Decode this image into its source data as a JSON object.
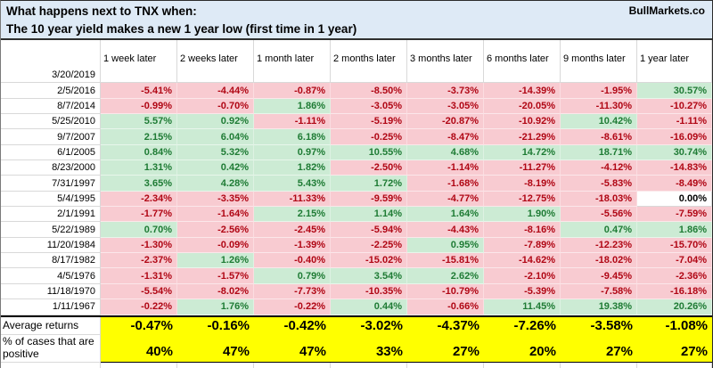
{
  "header": {
    "title_line1": "What happens next to TNX when:",
    "title_line2": "The 10 year yield makes a new 1 year low (first time in 1 year)",
    "brand": "BullMarkets.co"
  },
  "table": {
    "column_headers": [
      "1 week later",
      "2 weeks later",
      "1 month later",
      "2 months later",
      "3 months later",
      "6 months later",
      "9 months later",
      "1 year later"
    ],
    "rows": [
      {
        "date": "3/20/2019",
        "values": [
          "",
          "",
          "",
          "",
          "",
          "",
          "",
          ""
        ]
      },
      {
        "date": "2/5/2016",
        "values": [
          "-5.41%",
          "-4.44%",
          "-0.87%",
          "-8.50%",
          "-3.73%",
          "-14.39%",
          "-1.95%",
          "30.57%"
        ]
      },
      {
        "date": "8/7/2014",
        "values": [
          "-0.99%",
          "-0.70%",
          "1.86%",
          "-3.05%",
          "-3.05%",
          "-20.05%",
          "-11.30%",
          "-10.27%"
        ]
      },
      {
        "date": "5/25/2010",
        "values": [
          "5.57%",
          "0.92%",
          "-1.11%",
          "-5.19%",
          "-20.87%",
          "-10.92%",
          "10.42%",
          "-1.11%"
        ]
      },
      {
        "date": "9/7/2007",
        "values": [
          "2.15%",
          "6.04%",
          "6.18%",
          "-0.25%",
          "-8.47%",
          "-21.29%",
          "-8.61%",
          "-16.09%"
        ]
      },
      {
        "date": "6/1/2005",
        "values": [
          "0.84%",
          "5.32%",
          "0.97%",
          "10.55%",
          "4.68%",
          "14.72%",
          "18.71%",
          "30.74%"
        ]
      },
      {
        "date": "8/23/2000",
        "values": [
          "1.31%",
          "0.42%",
          "1.82%",
          "-2.50%",
          "-1.14%",
          "-11.27%",
          "-4.12%",
          "-14.83%"
        ]
      },
      {
        "date": "7/31/1997",
        "values": [
          "3.65%",
          "4.28%",
          "5.43%",
          "1.72%",
          "-1.68%",
          "-8.19%",
          "-5.83%",
          "-8.49%"
        ]
      },
      {
        "date": "5/4/1995",
        "values": [
          "-2.34%",
          "-3.35%",
          "-11.33%",
          "-9.59%",
          "-4.77%",
          "-12.75%",
          "-18.03%",
          "0.00%"
        ]
      },
      {
        "date": "2/1/1991",
        "values": [
          "-1.77%",
          "-1.64%",
          "2.15%",
          "1.14%",
          "1.64%",
          "1.90%",
          "-5.56%",
          "-7.59%"
        ]
      },
      {
        "date": "5/22/1989",
        "values": [
          "0.70%",
          "-2.56%",
          "-2.45%",
          "-5.94%",
          "-4.43%",
          "-8.16%",
          "0.47%",
          "1.86%"
        ]
      },
      {
        "date": "11/20/1984",
        "values": [
          "-1.30%",
          "-0.09%",
          "-1.39%",
          "-2.25%",
          "0.95%",
          "-7.89%",
          "-12.23%",
          "-15.70%"
        ]
      },
      {
        "date": "8/17/1982",
        "values": [
          "-2.37%",
          "1.26%",
          "-0.40%",
          "-15.02%",
          "-15.81%",
          "-14.62%",
          "-18.02%",
          "-7.04%"
        ]
      },
      {
        "date": "4/5/1976",
        "values": [
          "-1.31%",
          "-1.57%",
          "0.79%",
          "3.54%",
          "2.62%",
          "-2.10%",
          "-9.45%",
          "-2.36%"
        ]
      },
      {
        "date": "11/18/1970",
        "values": [
          "-5.54%",
          "-8.02%",
          "-7.73%",
          "-10.35%",
          "-10.79%",
          "-5.39%",
          "-7.58%",
          "-16.18%"
        ]
      },
      {
        "date": "1/11/1967",
        "values": [
          "-0.22%",
          "1.76%",
          "-0.22%",
          "0.44%",
          "-0.66%",
          "11.45%",
          "19.38%",
          "20.26%"
        ]
      }
    ],
    "footer": {
      "average_label": "Average returns",
      "average_values": [
        "-0.47%",
        "-0.16%",
        "-0.42%",
        "-3.02%",
        "-4.37%",
        "-7.26%",
        "-3.58%",
        "-1.08%"
      ],
      "positive_label_line1": "% of cases that are",
      "positive_label_line2": "positive",
      "positive_values": [
        "40%",
        "47%",
        "47%",
        "33%",
        "27%",
        "20%",
        "27%",
        "27%"
      ]
    }
  },
  "colors": {
    "title_bg": "#DEEAF6",
    "positive_bg": "#CCEBD4",
    "positive_text": "#1E7B34",
    "negative_bg": "#F8CBD1",
    "negative_text": "#B00614",
    "highlight_bg": "#FFFF00",
    "grid_line": "#D9D9D9"
  }
}
